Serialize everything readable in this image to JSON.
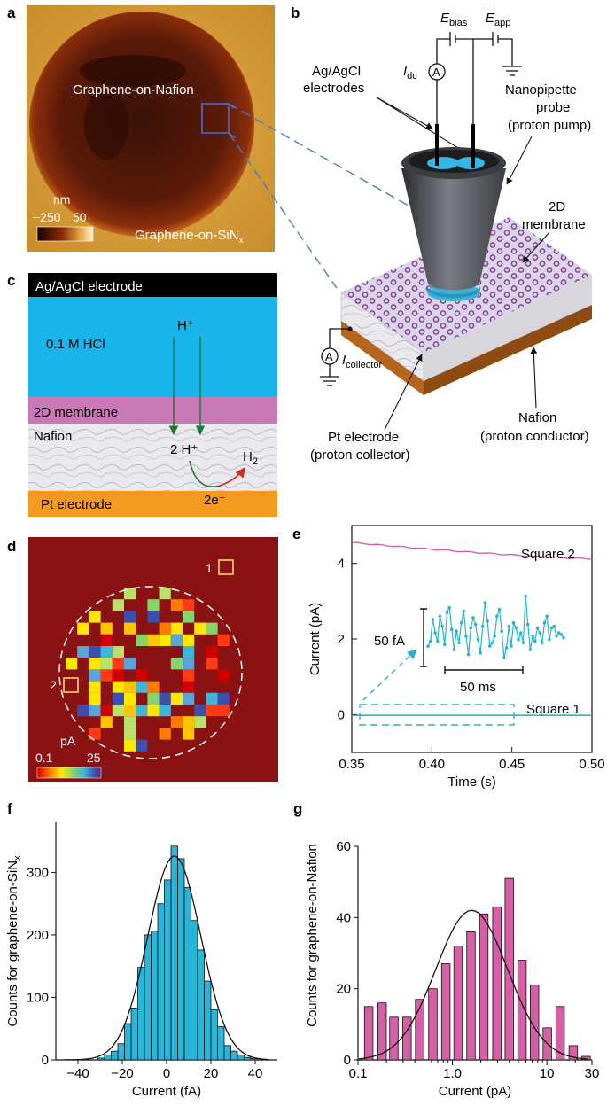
{
  "panels": {
    "a": {
      "letter": "a",
      "label_inner": "Graphene-on-Nafion",
      "label_outer": "Graphene-on-SiN",
      "label_outer_sub": "x",
      "scale_unit": "nm",
      "scale_min": "−250",
      "scale_max": "50"
    },
    "b": {
      "letter": "b",
      "e_bias": "E",
      "e_bias_sub": "bias",
      "e_app": "E",
      "e_app_sub": "app",
      "idc": "I",
      "idc_sub": "dc",
      "ammeter": "A",
      "electrodes_line1": "Ag/AgCl",
      "electrodes_line2": "electrodes",
      "probe_line1": "Nanopipette",
      "probe_line2": "probe",
      "probe_line3": "(proton pump)",
      "membrane_line1": "2D",
      "membrane_line2": "membrane",
      "collector": "I",
      "collector_sub": "collector",
      "pt_line1": "Pt electrode",
      "pt_line2": "(proton collector)",
      "nafion_line1": "Nafion",
      "nafion_line2": "(proton conductor)"
    },
    "c": {
      "letter": "c",
      "electrode": "Ag/AgCl electrode",
      "hcl": "0.1 M HCl",
      "proton": "H⁺",
      "membrane": "2D membrane",
      "nafion": "Nafion",
      "two_protons": "2 H⁺",
      "h2": "H",
      "h2_sub": "2",
      "electrons": "2e⁻",
      "pt": "Pt electrode"
    },
    "d": {
      "letter": "d",
      "square1": "1",
      "square2": "2",
      "unit": "pA",
      "cmin": "0.1",
      "cmax": "25"
    },
    "e": {
      "letter": "e",
      "square2": "Square 2",
      "square1": "Square 1",
      "scale_fa": "50 fA",
      "scale_ms": "50 ms"
    },
    "f": {
      "letter": "f"
    },
    "g": {
      "letter": "g"
    }
  },
  "chart_data": [
    {
      "id": "e",
      "type": "line",
      "xlabel": "Time (s)",
      "ylabel": "Current (pA)",
      "xlim": [
        0.35,
        0.5
      ],
      "ylim": [
        -1,
        5
      ],
      "xticks": [
        "0.35",
        "0.40",
        "0.45",
        "0.50"
      ],
      "yticks": [
        "0",
        "2",
        "4"
      ],
      "series": [
        {
          "name": "Square 2",
          "x": [
            0.35,
            0.5
          ],
          "y": [
            4.55,
            4.12
          ]
        },
        {
          "name": "Square 1",
          "x": [
            0.35,
            0.5
          ],
          "y": [
            -0.02,
            -0.02
          ]
        }
      ],
      "inset_values": [
        1.9,
        2.05,
        2.7,
        2.3,
        2.05,
        2.8,
        2.5,
        1.95,
        2.9,
        3.05,
        2.4,
        1.8,
        2.35,
        2.0,
        2.6,
        2.95,
        2.2,
        1.65,
        2.45,
        2.75,
        2.55,
        2.1,
        1.7,
        2.5,
        3.2,
        2.65,
        1.9,
        2.0,
        2.2,
        2.8,
        3.0,
        2.35,
        1.55,
        1.85,
        2.5,
        1.9,
        2.6,
        2.45,
        2.1,
        2.3,
        2.0,
        3.4,
        2.55,
        1.8,
        2.2,
        2.05,
        2.45,
        2.3,
        2.0,
        2.6,
        2.8,
        2.1,
        2.45,
        2.5,
        2.2,
        2.3,
        2.25,
        2.15
      ]
    },
    {
      "id": "f",
      "type": "bar",
      "xlabel": "Current (fA)",
      "ylabel": "Counts for graphene-on-SiN",
      "ylabel_sub": "x",
      "xlim": [
        -50,
        50
      ],
      "ylim": [
        0,
        380
      ],
      "xticks": [
        "−40",
        "−20",
        "0",
        "20",
        "40"
      ],
      "yticks": [
        "0",
        "100",
        "200",
        "300"
      ],
      "bin_width": 3,
      "bin_centers": [
        -29.5,
        -26.5,
        -23.5,
        -20.5,
        -17.5,
        -14.5,
        -11.5,
        -8.5,
        -5.5,
        -2.5,
        0.5,
        3.5,
        6.5,
        9.5,
        12.5,
        15.5,
        18.5,
        21.5,
        24.5,
        27.5,
        30.5,
        33.5,
        36.5,
        39.5
      ],
      "values": [
        3,
        8,
        14,
        26,
        58,
        83,
        148,
        200,
        206,
        250,
        288,
        342,
        322,
        276,
        223,
        176,
        126,
        80,
        53,
        23,
        14,
        8,
        4,
        2
      ],
      "fit": {
        "type": "gaussian",
        "mean": 3.5,
        "sigma": 12,
        "amplitude": 326
      }
    },
    {
      "id": "g",
      "type": "bar",
      "xlabel": "Current (pA)",
      "ylabel": "Counts for graphene-on-Nafion",
      "xscale": "log",
      "xlim": [
        0.1,
        30
      ],
      "ylim": [
        0,
        60
      ],
      "xticks": [
        "0.1",
        "1.0",
        "10",
        "30"
      ],
      "yticks": [
        "0",
        "20",
        "40",
        "60"
      ],
      "bin_centers": [
        0.13,
        0.18,
        0.24,
        0.33,
        0.45,
        0.62,
        0.85,
        1.15,
        1.57,
        2.15,
        2.95,
        4.0,
        5.45,
        7.4,
        10.1,
        13.8,
        19.0,
        26.0
      ],
      "values": [
        15,
        16,
        12,
        12,
        17,
        20,
        27,
        32,
        36,
        41,
        43,
        51,
        28,
        21,
        9,
        15,
        4,
        1
      ],
      "fit": {
        "type": "lognormal_gaussian",
        "peak_x": 1.6,
        "amplitude": 42,
        "sigma_log10": 0.38
      }
    }
  ]
}
